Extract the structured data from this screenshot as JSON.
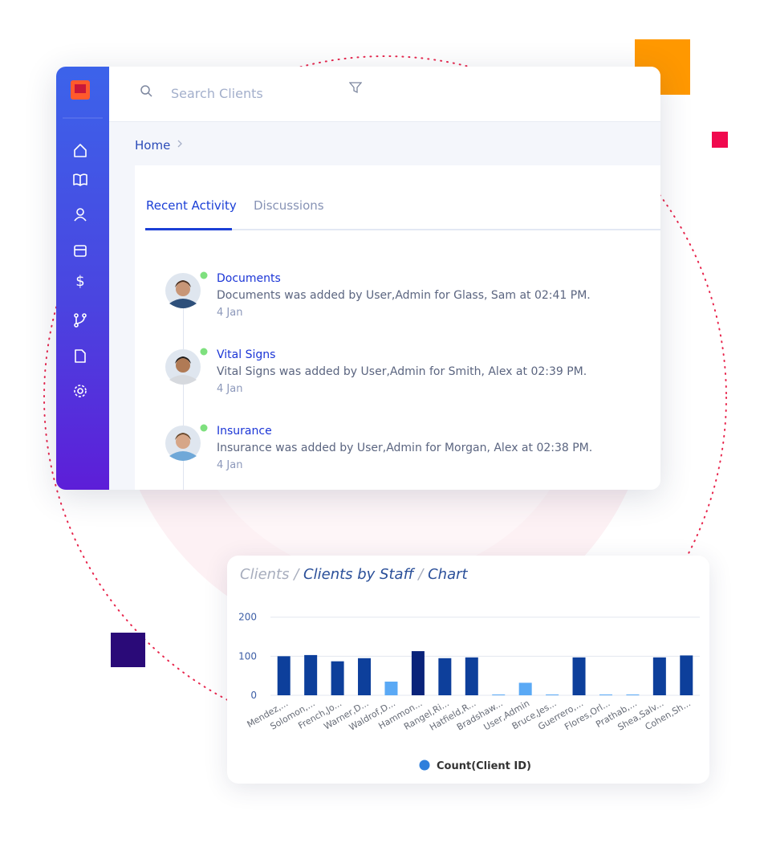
{
  "search_placeholder": "Search Clients",
  "breadcrumb": [
    "Home"
  ],
  "tabs": [
    "Recent Activity",
    "Discussions"
  ],
  "activity": [
    {
      "title": "Documents",
      "description": "Documents was added by User,Admin for Glass, Sam at 02:41 PM.",
      "date": "4 Jan"
    },
    {
      "title": "Vital Signs",
      "description": "Vital Signs was added by User,Admin for Smith, Alex at 02:39 PM.",
      "date": "4 Jan"
    },
    {
      "title": "Insurance",
      "description": "Insurance was added by User,Admin for Morgan, Alex at 02:38 PM.",
      "date": "4 Jan"
    }
  ],
  "chart_data": {
    "type": "bar",
    "title_parts": [
      "Clients",
      "Clients by Staff",
      "Chart"
    ],
    "separator": "/",
    "categories": [
      "Mendez,...",
      "Solomon,...",
      "French,Jo...",
      "Warner,D...",
      "Waldrof,D...",
      "Hammon...",
      "Rangel,Ri...",
      "Hatfield,R...",
      "Bradshaw...",
      "User,Admin",
      "Bruce,Jes...",
      "Guerrero,...",
      "Flores,Orl...",
      "Prathab,...",
      "Shea,Salv...",
      "Cohen,Sh..."
    ],
    "series": [
      {
        "name": "Count(Client ID)",
        "color": "#2f7fdc",
        "values": [
          100,
          103,
          87,
          95,
          35,
          113,
          95,
          97,
          2,
          32,
          2,
          97,
          2,
          2,
          97,
          102
        ],
        "colors": [
          "#0d3f9b",
          "#0d3f9b",
          "#0d3f9b",
          "#0d3f9b",
          "#5aa9f5",
          "#0a237a",
          "#0d3f9b",
          "#0d3f9b",
          "#5aa9f5",
          "#5aa9f5",
          "#5aa9f5",
          "#0d3f9b",
          "#5aa9f5",
          "#5aa9f5",
          "#0d3f9b",
          "#0d3f9b"
        ]
      }
    ],
    "ylim": [
      0,
      220
    ],
    "yticks": [
      0,
      100,
      200
    ],
    "grid": true,
    "legend": "bottom"
  }
}
